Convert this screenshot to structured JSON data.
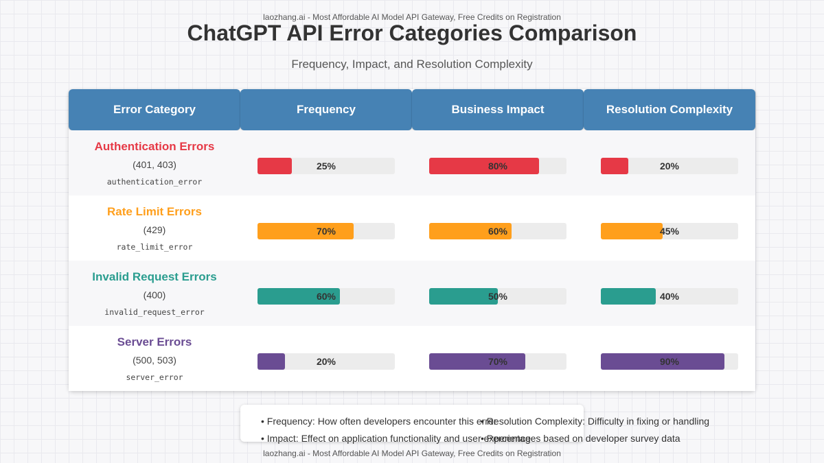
{
  "watermark_top": "laozhang.ai - Most Affordable AI Model API Gateway, Free Credits on Registration",
  "watermark_bottom": "laozhang.ai - Most Affordable AI Model API Gateway, Free Credits on Registration",
  "chart_data": {
    "type": "table",
    "title": "ChatGPT API Error Categories Comparison",
    "subtitle": "Frequency, Impact, and Resolution Complexity",
    "columns": [
      "Error Category",
      "Frequency",
      "Business Impact",
      "Resolution Complexity"
    ],
    "rows": [
      {
        "category": "Authentication Errors",
        "codes": "(401, 403)",
        "identifier": "authentication_error",
        "color": "#e63946",
        "frequency": 25,
        "impact": 80,
        "complexity": 20
      },
      {
        "category": "Rate Limit Errors",
        "codes": "(429)",
        "identifier": "rate_limit_error",
        "color": "#ff9f1c",
        "frequency": 70,
        "impact": 60,
        "complexity": 45
      },
      {
        "category": "Invalid Request Errors",
        "codes": "(400)",
        "identifier": "invalid_request_error",
        "color": "#2a9d8f",
        "frequency": 60,
        "impact": 50,
        "complexity": 40
      },
      {
        "category": "Server Errors",
        "codes": "(500, 503)",
        "identifier": "server_error",
        "color": "#6a4c93",
        "frequency": 20,
        "impact": 70,
        "complexity": 90
      }
    ],
    "unit": "%",
    "value_range": [
      0,
      100
    ]
  },
  "legend": {
    "items": [
      "• Frequency: How often developers encounter this error",
      "• Impact: Effect on application functionality and user experience",
      "• Resolution Complexity: Difficulty in fixing or handling",
      "• Percentages based on developer survey data"
    ]
  },
  "colors": {
    "header": "#4682b4",
    "bar_track": "#ececec"
  }
}
